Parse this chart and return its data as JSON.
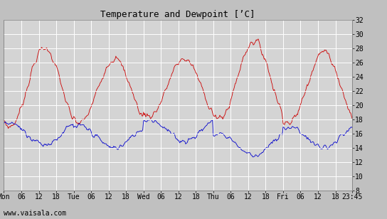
{
  "title": "Temperature and Dewpoint [’C]",
  "yticks": [
    8,
    10,
    12,
    14,
    16,
    18,
    20,
    22,
    24,
    26,
    28,
    30,
    32
  ],
  "ylim": [
    8,
    32
  ],
  "fig_bg_color": "#c0c0c0",
  "plot_bg_color": "#d4d4d4",
  "grid_color": "#ffffff",
  "temp_color": "#cc0000",
  "dew_color": "#0000cc",
  "watermark": "www.vaisala.com",
  "title_fontsize": 9,
  "tick_fontsize": 7,
  "watermark_fontsize": 7,
  "line_width": 0.6
}
